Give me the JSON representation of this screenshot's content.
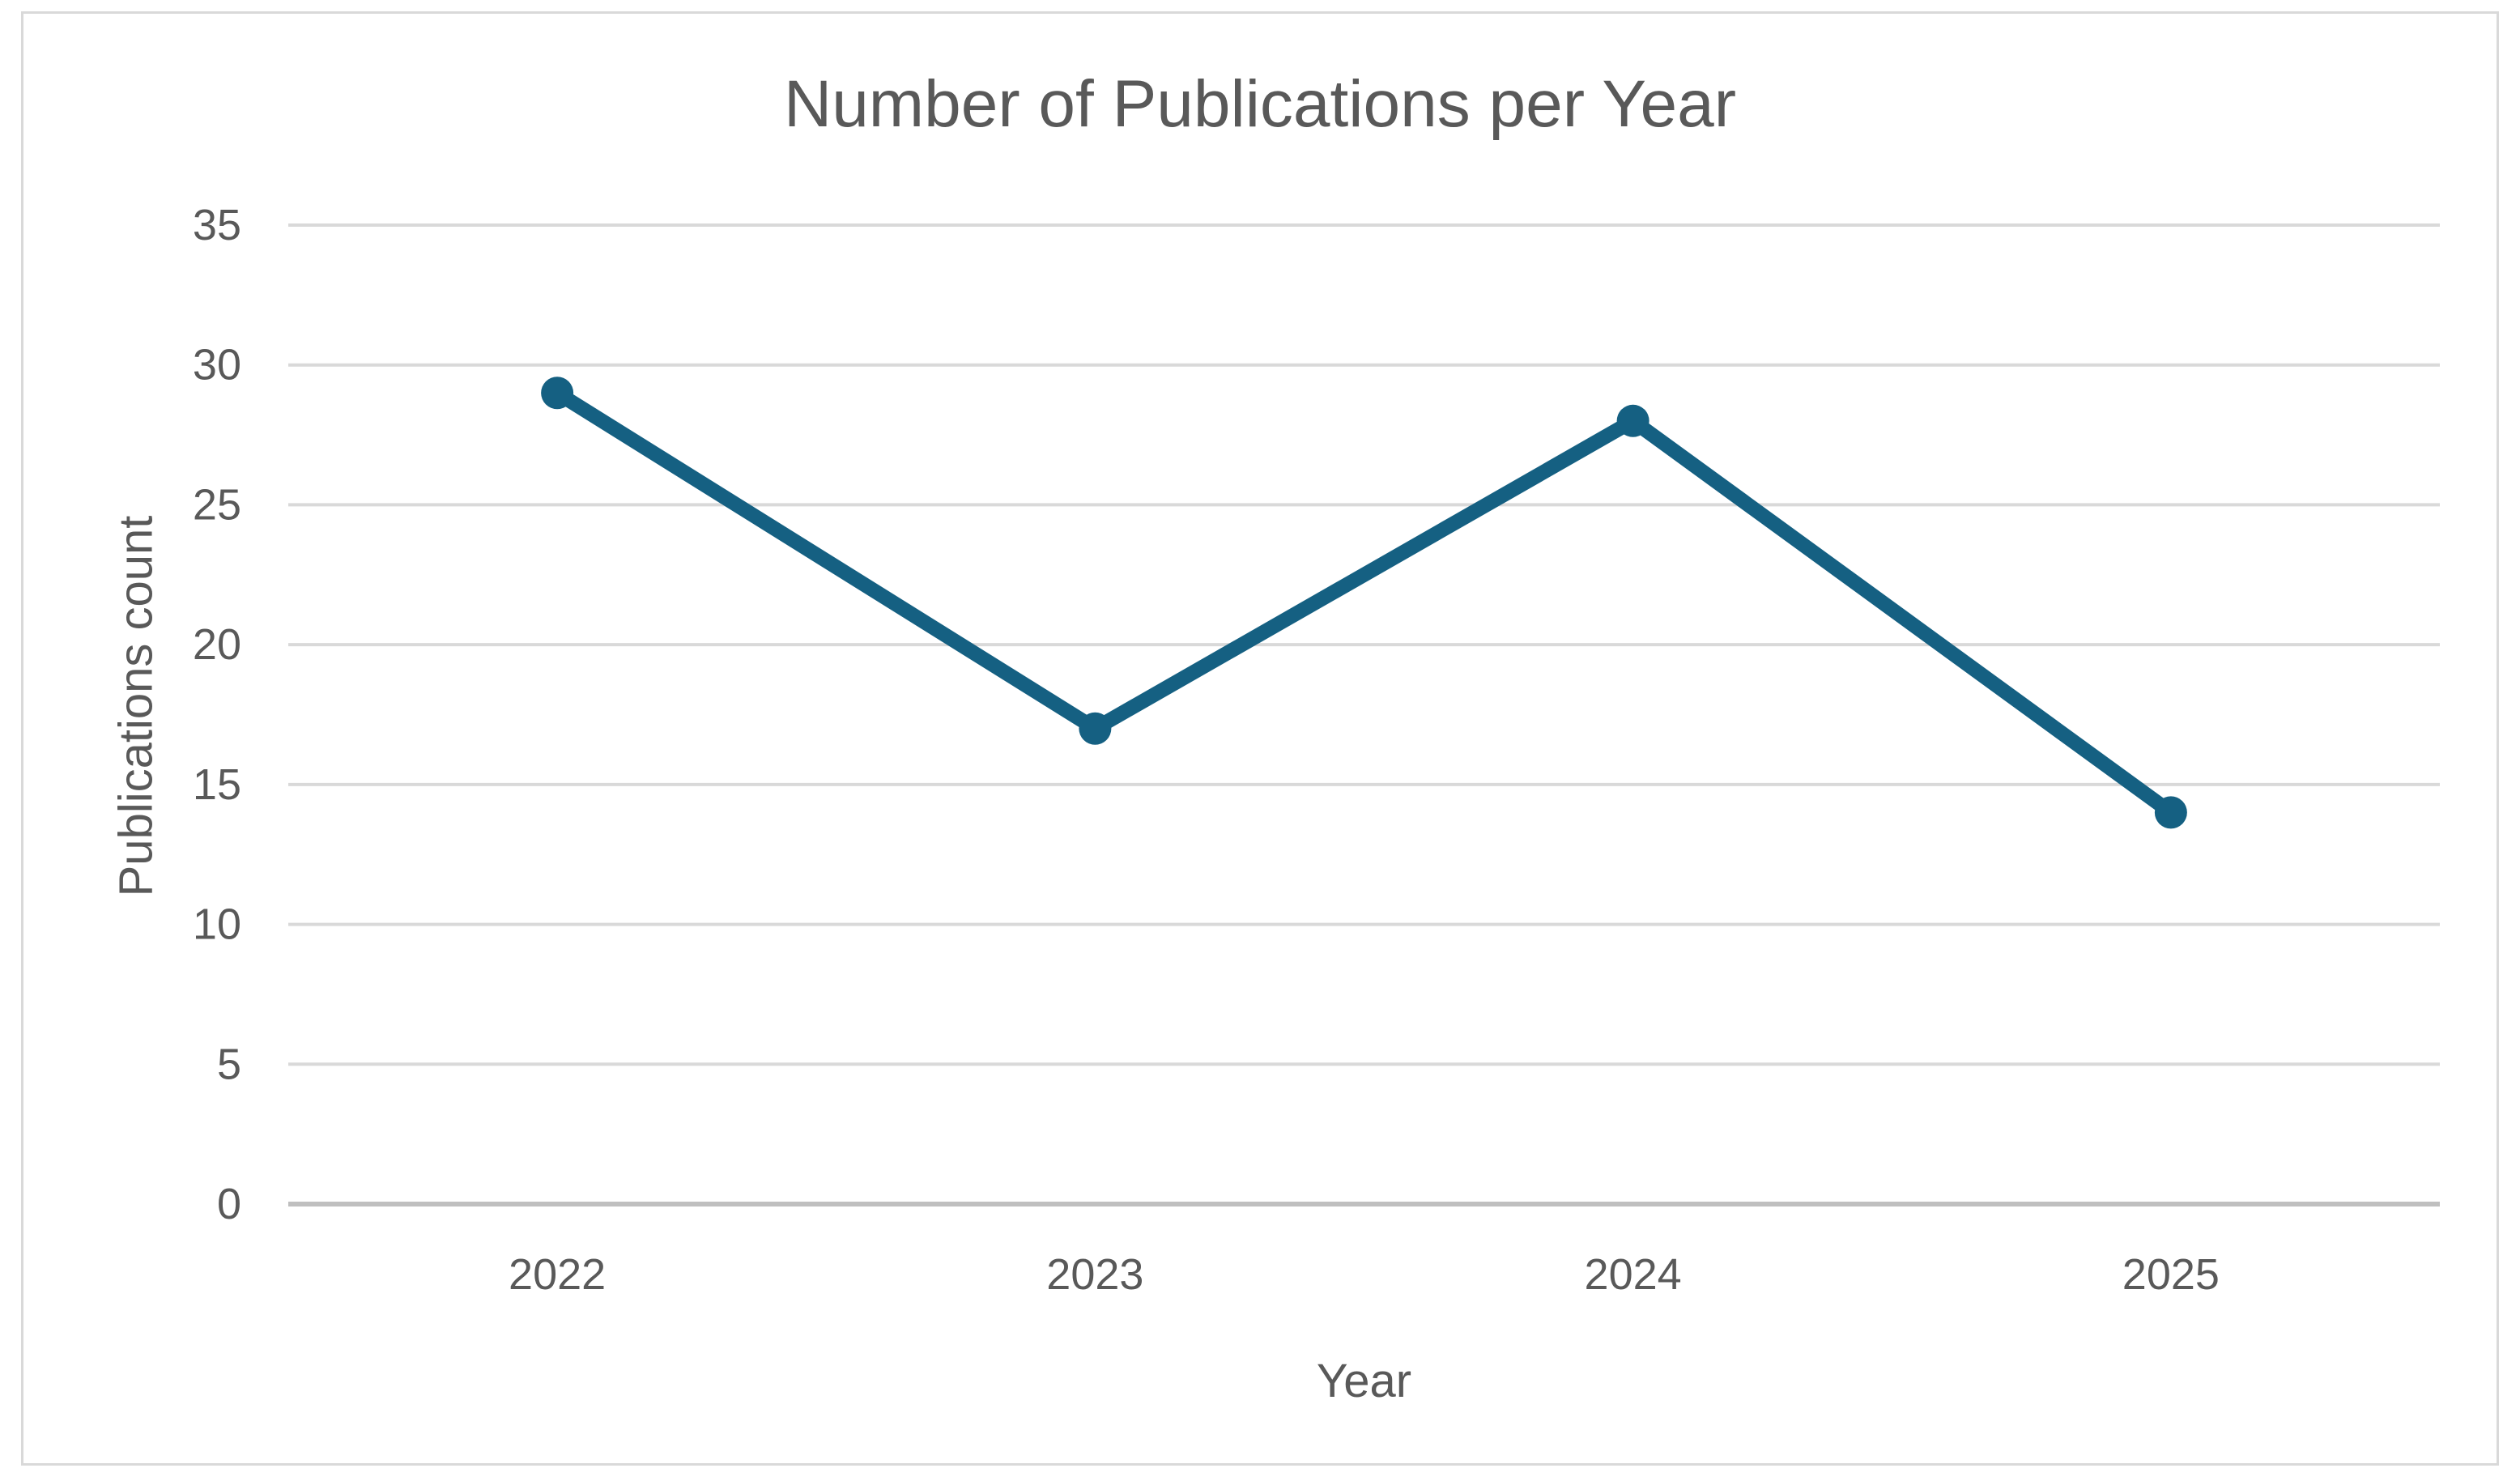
{
  "chart_data": {
    "type": "line",
    "title": "Number of Publications per Year",
    "xlabel": "Year",
    "ylabel": "Publications count",
    "categories": [
      "2022",
      "2023",
      "2024",
      "2025"
    ],
    "values": [
      29,
      17,
      28,
      14
    ],
    "ylim": [
      0,
      35
    ],
    "yticks": [
      0,
      5,
      10,
      15,
      20,
      25,
      30,
      35
    ],
    "grid": "horizontal",
    "legend": "none",
    "marker": "circle",
    "colors": {
      "line": "#156082",
      "gridline": "#D9D9D9",
      "axis_line": "#BFBFBF",
      "title_text": "#595959",
      "tick_label": "#595959",
      "axis_title_text": "#595959",
      "chart_border": "#D9D9D9",
      "background": "#FFFFFF"
    }
  }
}
